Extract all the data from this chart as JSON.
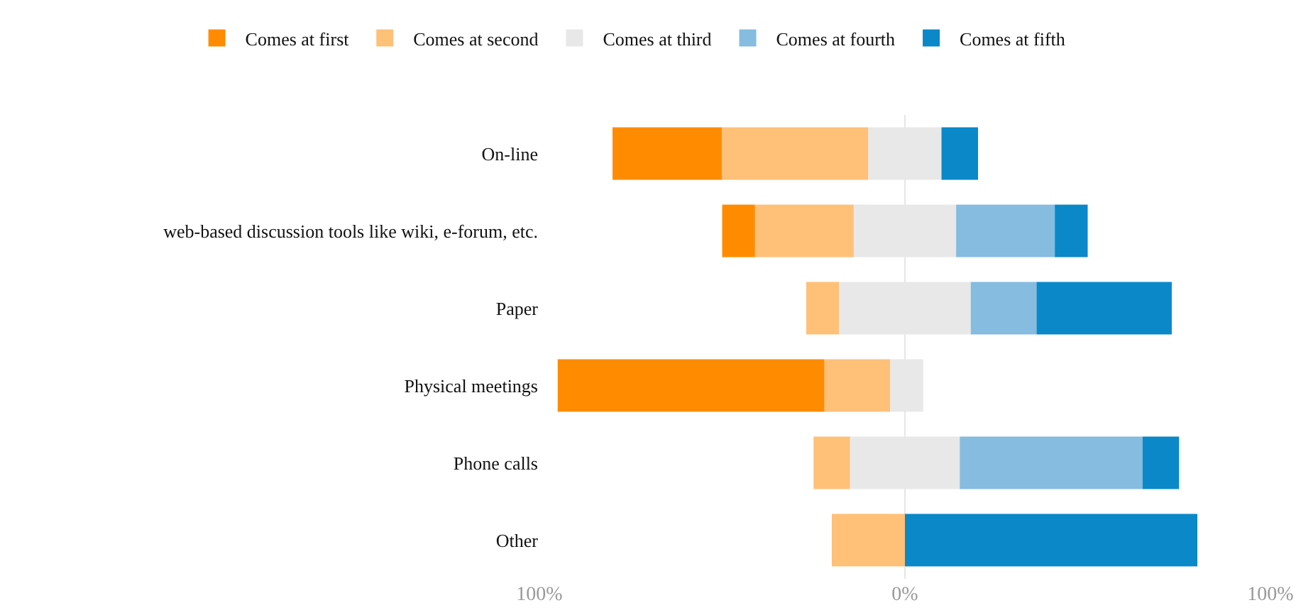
{
  "chart_data": {
    "type": "bar",
    "orientation": "horizontal",
    "stacked": true,
    "categories": [
      "On-line",
      "web-based discussion tools like wiki, e-forum, etc.",
      "Paper",
      "Physical meetings",
      "Phone calls",
      "Other"
    ],
    "series": [
      {
        "name": "Comes at first",
        "color": "#ff8c00",
        "values": [
          30,
          9,
          null,
          73,
          null,
          null
        ],
        "base": [
          -80,
          -50,
          null,
          -95,
          null,
          null
        ]
      },
      {
        "name": "Comes at second",
        "color": "#ffc078",
        "values": [
          40,
          27,
          9,
          18,
          10,
          20
        ],
        "base": [
          -50,
          -41,
          -27,
          -22,
          -25,
          -20
        ]
      },
      {
        "name": "Comes at third",
        "color": "#e8e8e8",
        "values": [
          20,
          28,
          36,
          9,
          30,
          null
        ],
        "base": [
          -10,
          -14,
          -18,
          -4,
          -15,
          null
        ]
      },
      {
        "name": "Comes at fourth",
        "color": "#85bce0",
        "values": [
          null,
          27,
          18,
          null,
          50,
          null
        ],
        "base": [
          null,
          14,
          18,
          null,
          15,
          null
        ]
      },
      {
        "name": "Comes at fifth",
        "color": "#0a88c8",
        "values": [
          10,
          9,
          37,
          null,
          10,
          80
        ],
        "base": [
          10,
          41,
          36,
          null,
          65,
          0
        ]
      }
    ],
    "xlim": [
      -100,
      100
    ],
    "xticks": [
      {
        "value": -100,
        "label": "100%"
      },
      {
        "value": 0,
        "label": "0%"
      },
      {
        "value": 100,
        "label": "100%"
      }
    ],
    "grid": "x",
    "legend": "top left"
  }
}
